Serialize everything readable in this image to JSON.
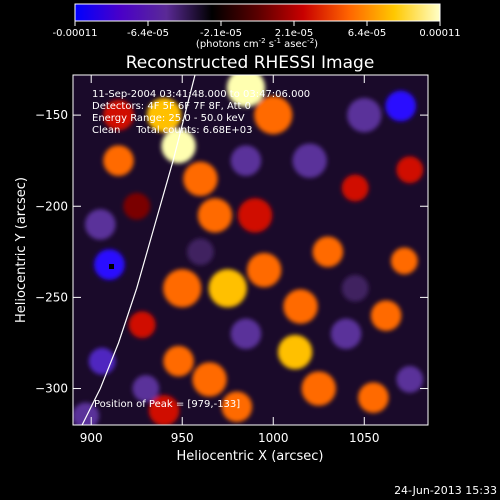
{
  "chart_data": {
    "type": "heatmap",
    "title": "Reconstructed RHESSI Image",
    "xlabel": "Heliocentric X (arcsec)",
    "ylabel": "Heliocentric Y (arcsec)",
    "xlim": [
      890,
      1085
    ],
    "ylim": [
      -320,
      -128
    ],
    "x_ticks": [
      900,
      950,
      1000,
      1050
    ],
    "y_ticks": [
      -300,
      -250,
      -200,
      -150
    ],
    "colorbar": {
      "ticks": [
        "-0.00011",
        "-6.4e-05",
        "-2.1e-05",
        "2.1e-05",
        "6.4e-05",
        "0.00011"
      ],
      "units_text": "(photons cm",
      "units_exp1": "-2",
      "units_mid": " s",
      "units_exp2": "-1",
      "units_after": " asec",
      "units_exp3": "-2",
      "units_close": ")",
      "colormap": [
        "#0000ff",
        "#4a00c8",
        "#5a2a96",
        "#000000",
        "#5a0000",
        "#c80000",
        "#ff6400",
        "#ffc800",
        "#ffffc8"
      ]
    },
    "annotations": [
      "11-Sep-2004 03:41:48.000 to 03:47:06.000",
      "Detectors: 4F 5F 6F 7F 8F, Att 0",
      "Energy Range: 25.0 - 50.0 keV",
      "Clean     Total counts: 6.68E+03"
    ],
    "peak_label": "Position of Peak = [979,-133]",
    "limb_curve": [
      [
        895,
        -320
      ],
      [
        905,
        -300
      ],
      [
        915,
        -275
      ],
      [
        925,
        -245
      ],
      [
        935,
        -210
      ],
      [
        945,
        -175
      ],
      [
        957,
        -128
      ]
    ],
    "blobs": [
      {
        "x": 940,
        "y": -150,
        "v": 0.85,
        "s": 9
      },
      {
        "x": 948,
        "y": -167,
        "v": 0.95,
        "s": 9
      },
      {
        "x": 985,
        "y": -135,
        "v": 0.95,
        "s": 10
      },
      {
        "x": 1000,
        "y": -150,
        "v": 0.55,
        "s": 10
      },
      {
        "x": 915,
        "y": -150,
        "v": 0.5,
        "s": 8
      },
      {
        "x": 915,
        "y": -175,
        "v": 0.6,
        "s": 8
      },
      {
        "x": 960,
        "y": -185,
        "v": 0.55,
        "s": 9
      },
      {
        "x": 968,
        "y": -205,
        "v": 0.6,
        "s": 9
      },
      {
        "x": 990,
        "y": -205,
        "v": 0.45,
        "s": 9
      },
      {
        "x": 950,
        "y": -245,
        "v": 0.7,
        "s": 10
      },
      {
        "x": 975,
        "y": -245,
        "v": 0.75,
        "s": 10
      },
      {
        "x": 995,
        "y": -235,
        "v": 0.55,
        "s": 9
      },
      {
        "x": 1030,
        "y": -225,
        "v": 0.55,
        "s": 8
      },
      {
        "x": 1045,
        "y": -190,
        "v": 0.5,
        "s": 7
      },
      {
        "x": 1075,
        "y": -180,
        "v": 0.45,
        "s": 7
      },
      {
        "x": 1015,
        "y": -255,
        "v": 0.6,
        "s": 9
      },
      {
        "x": 1012,
        "y": -280,
        "v": 0.85,
        "s": 9
      },
      {
        "x": 1025,
        "y": -300,
        "v": 0.7,
        "s": 9
      },
      {
        "x": 1062,
        "y": -260,
        "v": 0.6,
        "s": 8
      },
      {
        "x": 1072,
        "y": -230,
        "v": 0.55,
        "s": 7
      },
      {
        "x": 1055,
        "y": -305,
        "v": 0.65,
        "s": 8
      },
      {
        "x": 965,
        "y": -295,
        "v": 0.65,
        "s": 9
      },
      {
        "x": 948,
        "y": -285,
        "v": 0.65,
        "s": 8
      },
      {
        "x": 928,
        "y": -265,
        "v": 0.5,
        "s": 7
      },
      {
        "x": 980,
        "y": -310,
        "v": 0.6,
        "s": 8
      },
      {
        "x": 940,
        "y": -312,
        "v": 0.5,
        "s": 8
      },
      {
        "x": 925,
        "y": -200,
        "v": 0.35,
        "s": 7
      },
      {
        "x": 905,
        "y": -210,
        "v": -0.55,
        "s": 8
      },
      {
        "x": 910,
        "y": -232,
        "v": -0.9,
        "s": 8
      },
      {
        "x": 906,
        "y": -285,
        "v": -0.75,
        "s": 7
      },
      {
        "x": 897,
        "y": -315,
        "v": -0.55,
        "s": 7
      },
      {
        "x": 1070,
        "y": -145,
        "v": -0.9,
        "s": 8
      },
      {
        "x": 1050,
        "y": -150,
        "v": -0.55,
        "s": 9
      },
      {
        "x": 1020,
        "y": -175,
        "v": -0.5,
        "s": 9
      },
      {
        "x": 985,
        "y": -175,
        "v": -0.45,
        "s": 8
      },
      {
        "x": 985,
        "y": -270,
        "v": -0.5,
        "s": 8
      },
      {
        "x": 1040,
        "y": -270,
        "v": -0.45,
        "s": 8
      },
      {
        "x": 1045,
        "y": -245,
        "v": -0.4,
        "s": 7
      },
      {
        "x": 960,
        "y": -225,
        "v": -0.35,
        "s": 7
      },
      {
        "x": 930,
        "y": -300,
        "v": -0.45,
        "s": 7
      },
      {
        "x": 1075,
        "y": -295,
        "v": -0.45,
        "s": 7
      }
    ]
  },
  "footer": {
    "date": "24-Jun-2013 15:33"
  }
}
